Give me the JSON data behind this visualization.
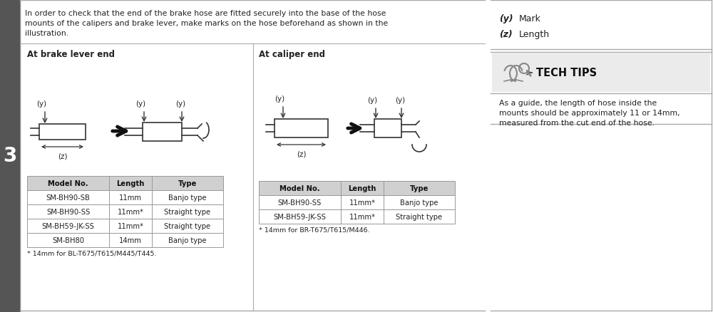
{
  "bg_color": "#ffffff",
  "step_number": "3",
  "step_bg": "#555555",
  "intro_text_line1": "In order to check that the end of the brake hose are fitted securely into the base of the hose",
  "intro_text_line2": "mounts of the calipers and brake lever, make marks on the hose beforehand as shown in the",
  "intro_text_line3": "illustration.",
  "brake_lever_label": "At brake lever end",
  "caliper_label": "At caliper end",
  "legend_y_bold": "(y)",
  "legend_y_text": "Mark",
  "legend_z_bold": "(z)",
  "legend_z_text": "Length",
  "tech_tips_title": "TECH TIPS",
  "tech_tips_text_line1": "As a guide, the length of hose inside the",
  "tech_tips_text_line2": "mounts should be approximately 11 or 14mm,",
  "tech_tips_text_line3": "measured from the cut end of the hose.",
  "table1_headers": [
    "Model No.",
    "Length",
    "Type"
  ],
  "table1_rows": [
    [
      "SM-BH90-SB",
      "11mm",
      "Banjo type"
    ],
    [
      "SM-BH90-SS",
      "11mm*",
      "Straight type"
    ],
    [
      "SM-BH59-JK-SS",
      "11mm*",
      "Straight type"
    ],
    [
      "SM-BH80",
      "14mm",
      "Banjo type"
    ]
  ],
  "table1_footnote": "* 14mm for BL-T675/T615/M445/T445.",
  "table2_headers": [
    "Model No.",
    "Length",
    "Type"
  ],
  "table2_rows": [
    [
      "SM-BH90-SS",
      "11mm*",
      "Banjo type"
    ],
    [
      "SM-BH59-JK-SS",
      "11mm*",
      "Straight type"
    ]
  ],
  "table2_footnote": "* 14mm for BR-T675/T615/M446.",
  "divider_color": "#aaaaaa",
  "table_header_bg": "#d0d0d0",
  "table_border_color": "#999999",
  "tech_tips_bg": "#ebebeb",
  "text_color": "#222222",
  "line_color": "#333333"
}
